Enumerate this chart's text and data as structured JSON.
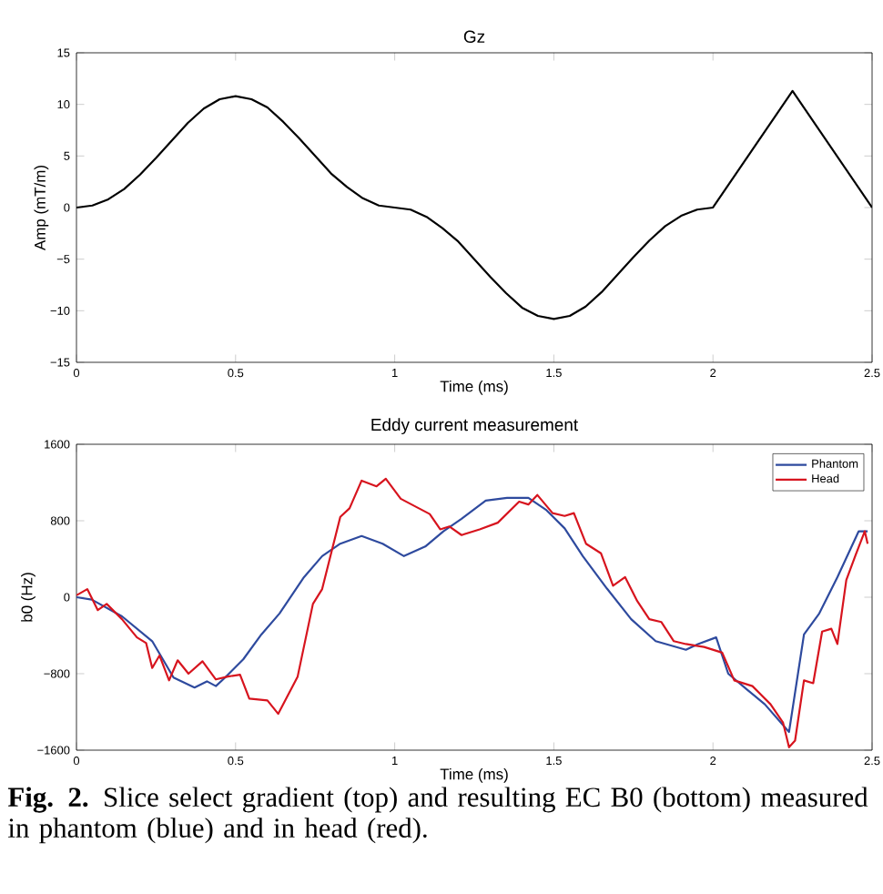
{
  "chart_data": [
    {
      "type": "line",
      "title": "Gz",
      "xlabel": "Time (ms)",
      "ylabel": "Amp (mT/m)",
      "xlim": [
        0,
        2.5
      ],
      "ylim": [
        -15,
        15
      ],
      "xticks": [
        0,
        0.5,
        1,
        1.5,
        2,
        2.5
      ],
      "yticks": [
        {
          "value": -15,
          "label": "−15"
        },
        {
          "value": -10,
          "label": "−10"
        },
        {
          "value": -5,
          "label": "−5"
        },
        0,
        5,
        10,
        15
      ],
      "x": [
        0,
        0.05,
        0.1,
        0.15,
        0.2,
        0.25,
        0.3,
        0.35,
        0.4,
        0.45,
        0.5,
        0.55,
        0.6,
        0.65,
        0.7,
        0.75,
        0.8,
        0.85,
        0.9,
        0.95,
        1.0,
        1.05,
        1.1,
        1.15,
        1.2,
        1.25,
        1.3,
        1.35,
        1.4,
        1.45,
        1.5,
        1.55,
        1.6,
        1.65,
        1.7,
        1.75,
        1.8,
        1.85,
        1.9,
        1.95,
        2.0,
        2.25,
        2.5
      ],
      "series": [
        {
          "color": "#000000",
          "values": [
            0,
            0.2,
            0.8,
            1.8,
            3.2,
            4.8,
            6.5,
            8.2,
            9.6,
            10.5,
            10.8,
            10.5,
            9.7,
            8.3,
            6.7,
            5.0,
            3.3,
            2.0,
            0.9,
            0.2,
            0,
            -0.2,
            -0.9,
            -2.0,
            -3.3,
            -5.0,
            -6.7,
            -8.3,
            -9.7,
            -10.5,
            -10.8,
            -10.5,
            -9.6,
            -8.2,
            -6.5,
            -4.8,
            -3.2,
            -1.8,
            -0.8,
            -0.2,
            0,
            11.3,
            0
          ]
        }
      ]
    },
    {
      "type": "line",
      "title": "Eddy current measurement",
      "xlabel": "Time (ms)",
      "ylabel": "b0 (Hz)",
      "xlim": [
        0,
        2.5
      ],
      "ylim": [
        -1600,
        1600
      ],
      "xticks": [
        0,
        0.5,
        1,
        1.5,
        2,
        2.5
      ],
      "yticks": [
        {
          "value": -1600,
          "label": "−1600"
        },
        {
          "value": -800,
          "label": "−800"
        },
        0,
        800,
        1600
      ],
      "legend": "top right",
      "annotations": [
        "**Fig. 2.** Slice select gradient (top) and resulting EC B0 (bottom) measured in phantom (blue) and in head (red)."
      ],
      "series": [
        {
          "name": "Phantom",
          "color": "#2e4a9e",
          "x": [
            0,
            0.048,
            0.143,
            0.238,
            0.305,
            0.371,
            0.41,
            0.438,
            0.467,
            0.524,
            0.581,
            0.638,
            0.715,
            0.772,
            0.829,
            0.896,
            0.962,
            1.029,
            1.096,
            1.153,
            1.21,
            1.286,
            1.353,
            1.42,
            1.477,
            1.534,
            1.591,
            1.667,
            1.743,
            1.82,
            1.915,
            1.953,
            2.01,
            2.048,
            2.105,
            2.163,
            2.239,
            2.286,
            2.334,
            2.391,
            2.458,
            2.486
          ],
          "values": [
            0,
            -25,
            -200,
            -460,
            -840,
            -945,
            -880,
            -930,
            -840,
            -650,
            -390,
            -170,
            210,
            430,
            560,
            640,
            560,
            430,
            530,
            690,
            820,
            1010,
            1040,
            1040,
            910,
            720,
            430,
            90,
            -230,
            -460,
            -550,
            -490,
            -420,
            -800,
            -960,
            -1120,
            -1410,
            -390,
            -170,
            210,
            690,
            690
          ]
        },
        {
          "name": "Head",
          "color": "#d7141e",
          "x": [
            0,
            0.034,
            0.067,
            0.095,
            0.143,
            0.19,
            0.219,
            0.238,
            0.261,
            0.291,
            0.318,
            0.352,
            0.396,
            0.438,
            0.476,
            0.514,
            0.543,
            0.6,
            0.634,
            0.695,
            0.743,
            0.772,
            0.829,
            0.858,
            0.896,
            0.943,
            0.972,
            1.019,
            1.076,
            1.11,
            1.143,
            1.172,
            1.21,
            1.267,
            1.324,
            1.391,
            1.42,
            1.448,
            1.496,
            1.534,
            1.563,
            1.601,
            1.648,
            1.686,
            1.724,
            1.762,
            1.8,
            1.838,
            1.877,
            1.915,
            1.972,
            2.029,
            2.067,
            2.124,
            2.181,
            2.22,
            2.239,
            2.258,
            2.286,
            2.315,
            2.343,
            2.372,
            2.391,
            2.419,
            2.448,
            2.477,
            2.486
          ],
          "values": [
            20,
            85,
            -135,
            -70,
            -230,
            -420,
            -480,
            -740,
            -610,
            -870,
            -660,
            -800,
            -670,
            -860,
            -830,
            -810,
            -1060,
            -1080,
            -1220,
            -830,
            -70,
            85,
            840,
            930,
            1220,
            1160,
            1240,
            1030,
            930,
            870,
            710,
            740,
            650,
            710,
            780,
            1000,
            970,
            1070,
            880,
            850,
            880,
            560,
            460,
            120,
            210,
            -40,
            -230,
            -260,
            -460,
            -490,
            -520,
            -580,
            -870,
            -930,
            -1120,
            -1310,
            -1570,
            -1500,
            -870,
            -900,
            -360,
            -330,
            -490,
            180,
            440,
            690,
            560
          ]
        }
      ]
    }
  ]
}
